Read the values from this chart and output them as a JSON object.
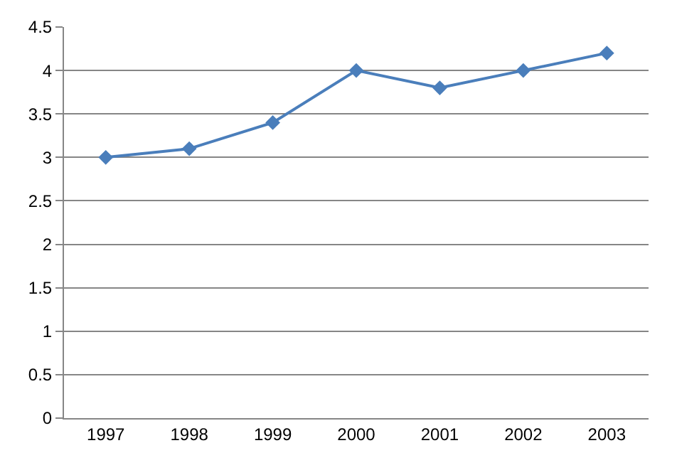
{
  "chart_data": {
    "type": "line",
    "categories": [
      "1997",
      "1998",
      "1999",
      "2000",
      "2001",
      "2002",
      "2003"
    ],
    "series": [
      {
        "color": "#4a7ebb",
        "values": [
          3.0,
          3.1,
          3.4,
          4.0,
          3.8,
          4.0,
          4.2
        ]
      }
    ],
    "ylim": [
      0,
      4.5
    ],
    "yticks": [
      0,
      0.5,
      1,
      1.5,
      2,
      2.5,
      3,
      3.5,
      4,
      4.5
    ],
    "grid": "y",
    "legend": false,
    "marker": "diamond",
    "line_style": "solid"
  }
}
